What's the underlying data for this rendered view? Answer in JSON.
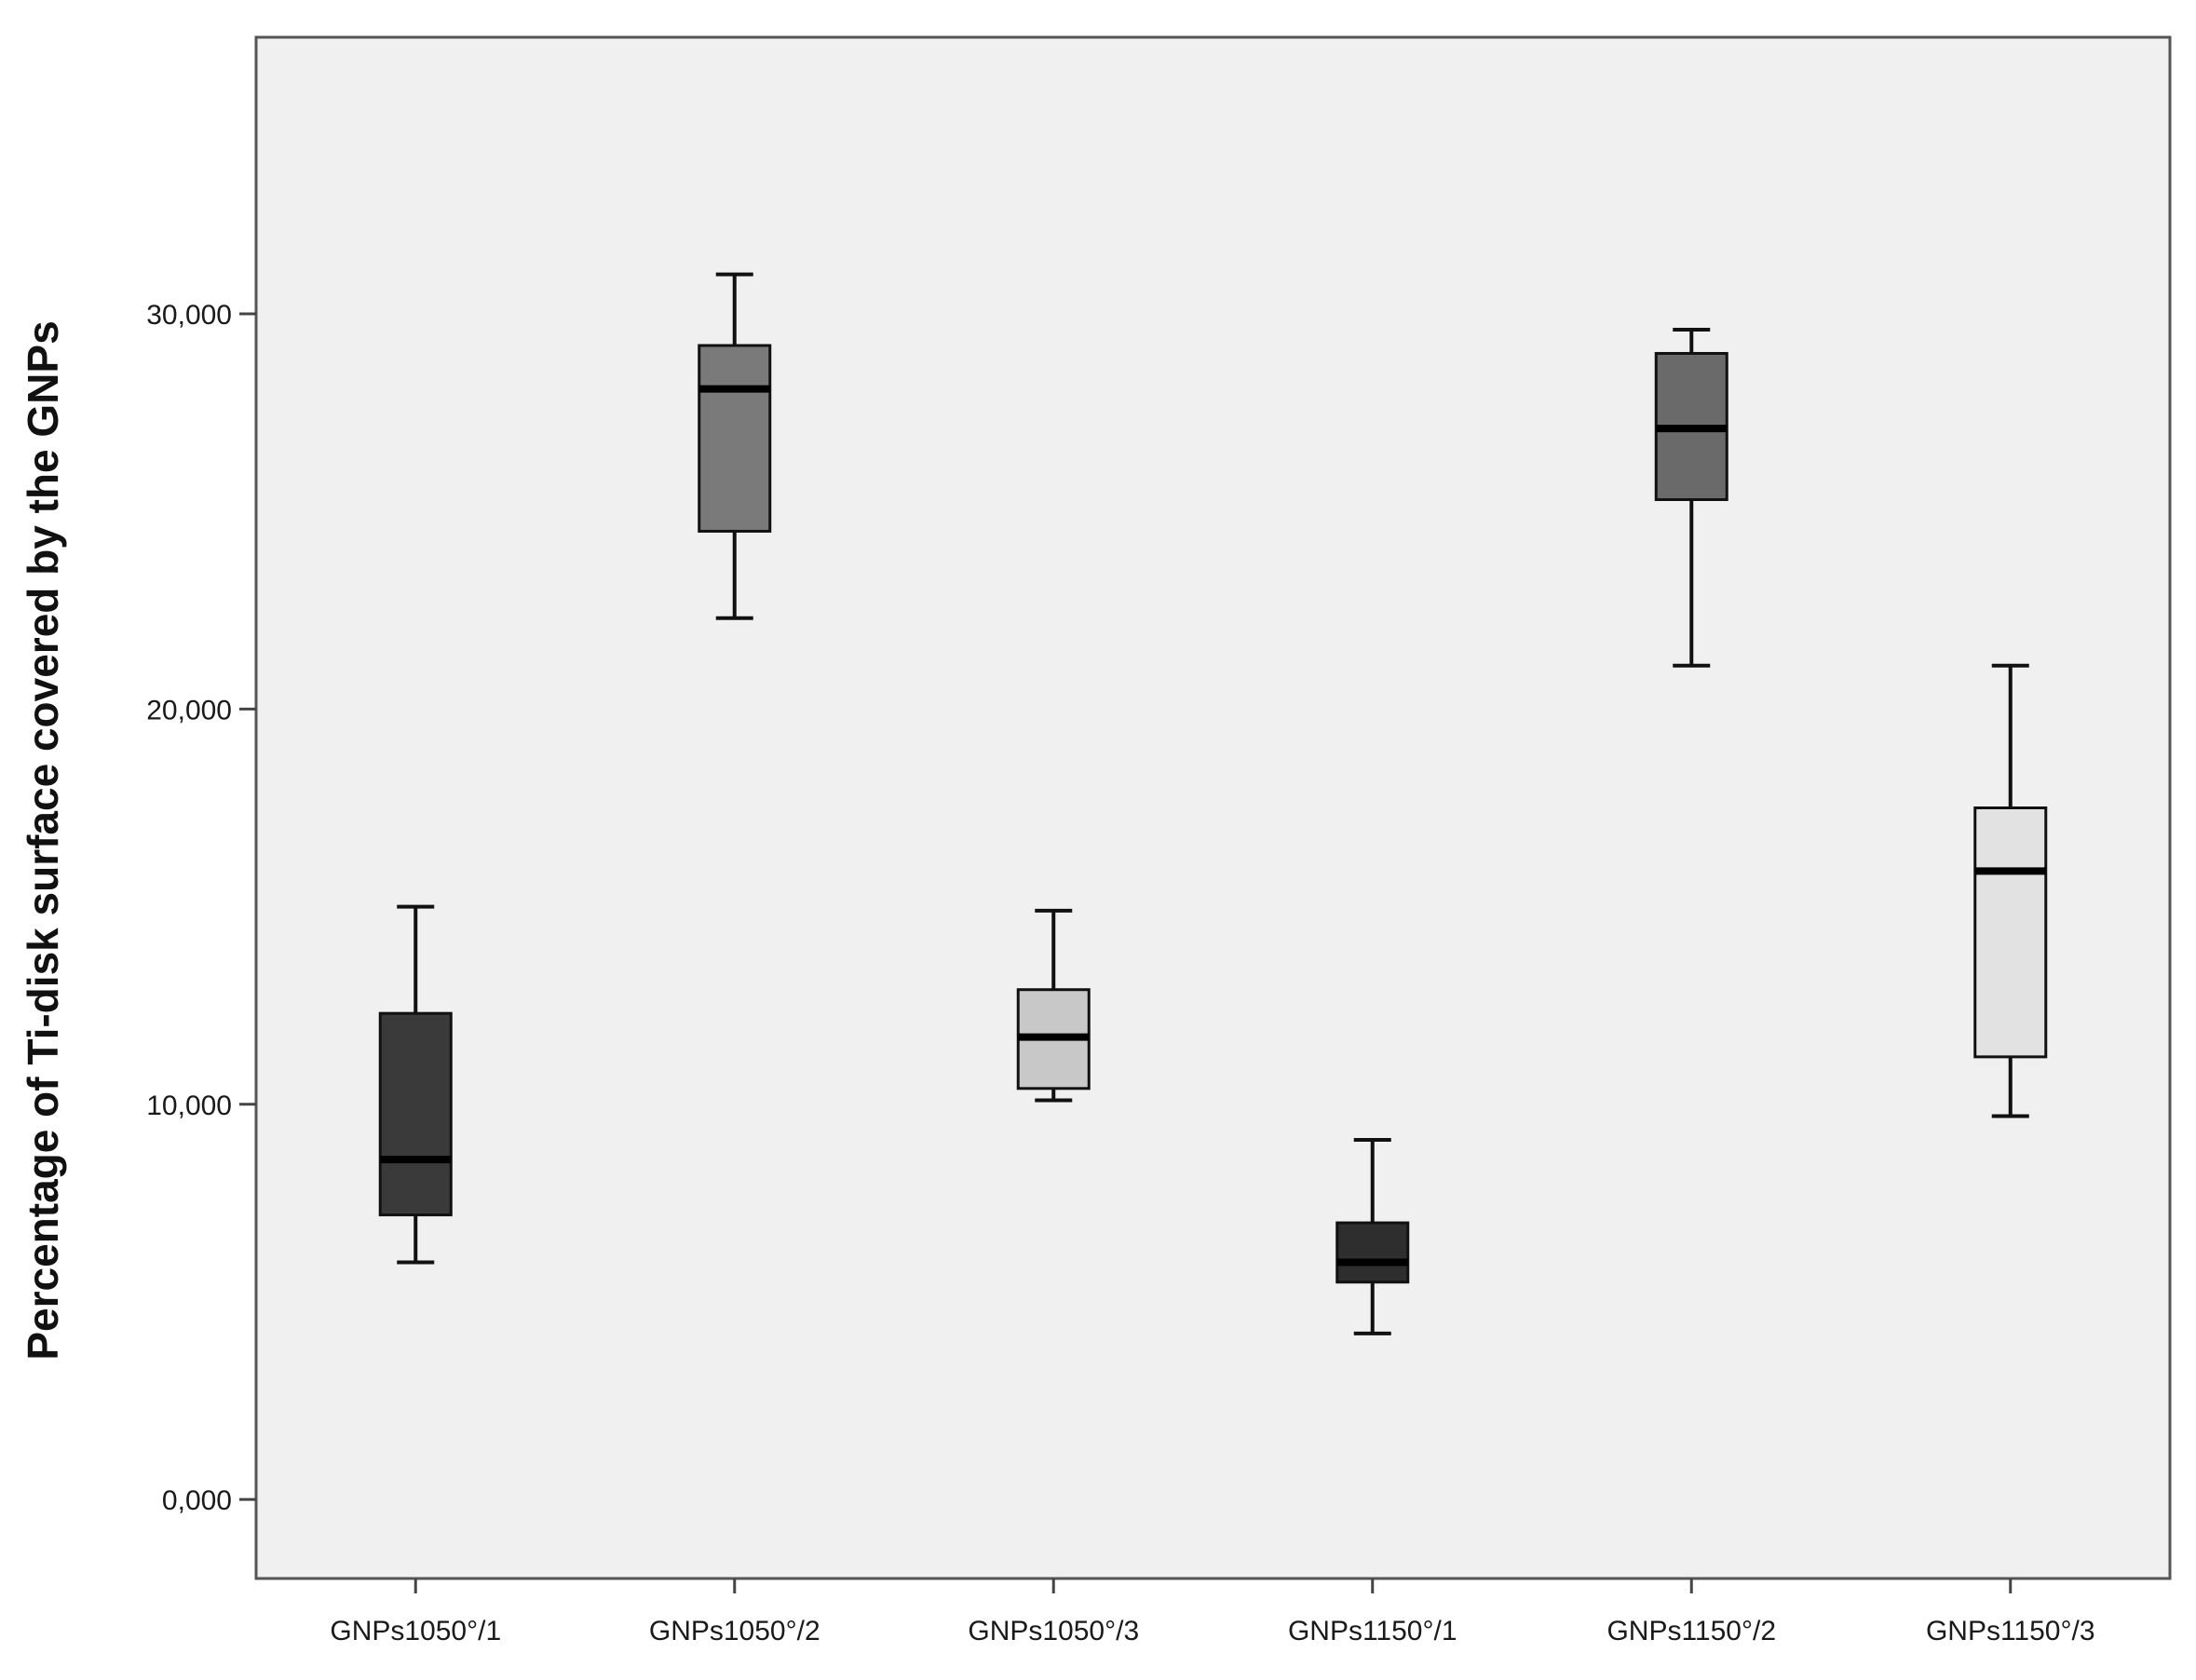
{
  "chart_data": {
    "type": "boxplot",
    "title": "",
    "xlabel": "",
    "ylabel": "Percentage of Ti-disk surface covered by the GNPs",
    "ylim": [
      -2,
      37
    ],
    "yticks": [
      {
        "value": 0,
        "label": "0,000"
      },
      {
        "value": 10,
        "label": "10,000"
      },
      {
        "value": 20,
        "label": "20,000"
      },
      {
        "value": 30,
        "label": "30,000"
      }
    ],
    "grid": false,
    "categories": [
      "GNPs1050°/1",
      "GNPs1050°/2",
      "GNPs1050°/3",
      "GNPs1150°/1",
      "GNPs1150°/2",
      "GNPs1150°/3"
    ],
    "boxes": [
      {
        "min": 6.0,
        "q1": 7.2,
        "median": 8.6,
        "q3": 12.3,
        "max": 15.0,
        "color": "#3a3a3a"
      },
      {
        "min": 22.3,
        "q1": 24.5,
        "median": 28.1,
        "q3": 29.2,
        "max": 31.0,
        "color": "#7a7a7a"
      },
      {
        "min": 10.1,
        "q1": 10.4,
        "median": 11.7,
        "q3": 12.9,
        "max": 14.9,
        "color": "#c8c8c8"
      },
      {
        "min": 4.2,
        "q1": 5.5,
        "median": 6.0,
        "q3": 7.0,
        "max": 9.1,
        "color": "#2e2e2e"
      },
      {
        "min": 21.1,
        "q1": 25.3,
        "median": 27.1,
        "q3": 29.0,
        "max": 29.6,
        "color": "#6a6a6a"
      },
      {
        "min": 9.7,
        "q1": 11.2,
        "median": 15.9,
        "q3": 17.5,
        "max": 21.1,
        "color": "#e2e2e2"
      }
    ],
    "plot_background": "#f0f0f0",
    "page_background": "#ffffff",
    "line_color": "#111111"
  }
}
